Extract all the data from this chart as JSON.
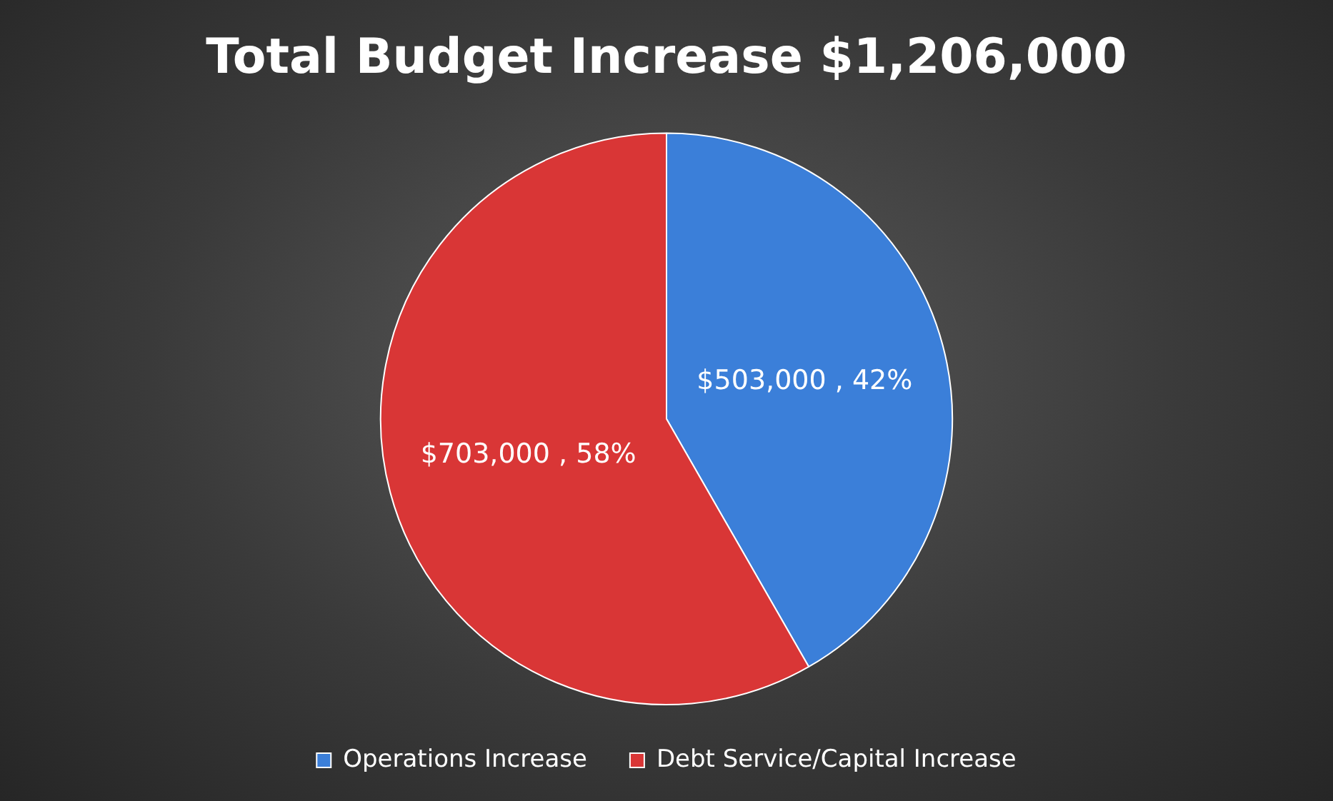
{
  "chart_data": {
    "type": "pie",
    "title": "Total Budget Increase $1,206,000",
    "categories": [
      "Operations Increase",
      "Debt Service/Capital Increase"
    ],
    "values": [
      503000,
      703000
    ],
    "colors": [
      "#3b7fd9",
      "#d93636"
    ],
    "value_labels": [
      "$503,000 , 42%",
      "$703,000 , 58%"
    ],
    "legend": "bottom"
  }
}
